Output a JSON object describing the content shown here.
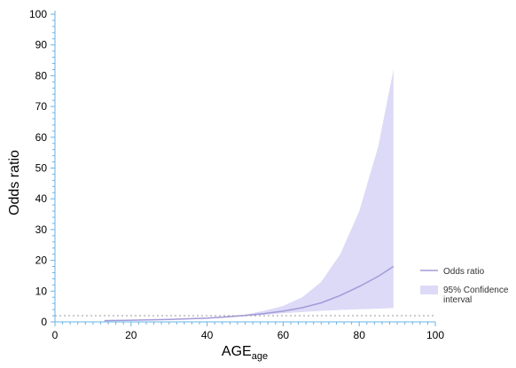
{
  "chart_data": {
    "type": "area",
    "xlabel": "AGE",
    "xlabel_subscript": "age",
    "ylabel": "Odds ratio",
    "xlim": [
      0,
      100
    ],
    "ylim": [
      0,
      100
    ],
    "x_ticks": [
      0,
      20,
      40,
      60,
      80,
      100
    ],
    "y_ticks": [
      0,
      10,
      20,
      30,
      40,
      50,
      60,
      70,
      80,
      90,
      100
    ],
    "x_tick_labels": [
      "0",
      "20",
      "40",
      "60",
      "80",
      "100"
    ],
    "y_tick_labels": [
      "0",
      "10",
      "20",
      "30",
      "40",
      "50",
      "60",
      "70",
      "80",
      "90",
      "100"
    ],
    "reference_line": {
      "y": 2,
      "style": "dotted"
    },
    "grid": false,
    "legend_position": "right",
    "series": [
      {
        "name": "Odds ratio",
        "kind": "line",
        "color": "#a29bd8",
        "x": [
          13,
          20,
          30,
          40,
          45,
          50,
          55,
          60,
          65,
          70,
          75,
          80,
          85,
          89
        ],
        "y": [
          0.4,
          0.55,
          0.8,
          1.2,
          1.6,
          2.1,
          2.7,
          3.5,
          4.6,
          6.2,
          8.6,
          11.5,
          14.8,
          18
        ]
      },
      {
        "name": "95% Confidence interval",
        "kind": "band",
        "color": "#dcdaf7",
        "x": [
          13,
          20,
          30,
          40,
          45,
          50,
          55,
          60,
          65,
          70,
          75,
          80,
          85,
          89
        ],
        "lower": [
          0.3,
          0.45,
          0.7,
          1.0,
          1.4,
          1.9,
          2.3,
          2.8,
          3.2,
          3.6,
          3.9,
          4.1,
          4.3,
          4.5
        ],
        "upper": [
          0.6,
          0.7,
          0.9,
          1.4,
          1.8,
          2.4,
          3.6,
          5.2,
          8.0,
          13.0,
          22.0,
          36.0,
          57.0,
          82.0
        ]
      }
    ]
  }
}
